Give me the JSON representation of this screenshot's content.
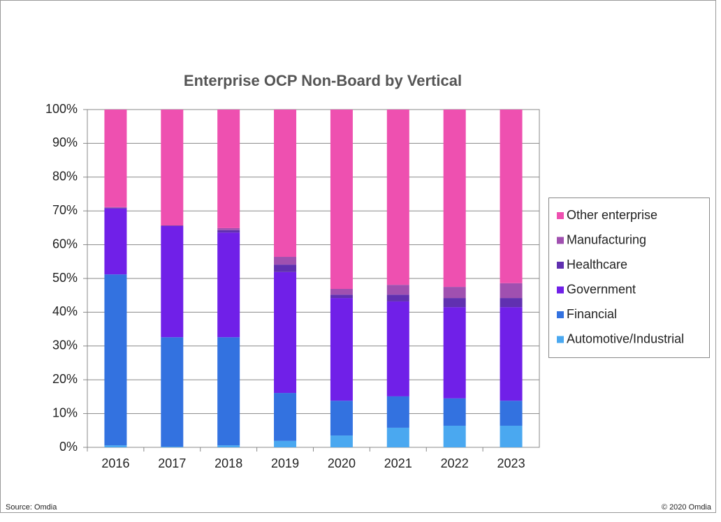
{
  "chart_data": {
    "type": "stacked_bar",
    "title": "Enterprise OCP Non-Board by Vertical",
    "categories": [
      "2016",
      "2017",
      "2018",
      "2019",
      "2020",
      "2021",
      "2022",
      "2023"
    ],
    "series": [
      {
        "name": "Automotive/Industrial",
        "color": "#4aa8f0",
        "values": [
          0.6,
          0.2,
          0.6,
          1.9,
          3.5,
          5.8,
          6.4,
          6.4
        ]
      },
      {
        "name": "Financial",
        "color": "#3372e0",
        "values": [
          50.6,
          32.4,
          32.0,
          14.2,
          10.3,
          9.3,
          8.1,
          7.4
        ]
      },
      {
        "name": "Government",
        "color": "#7020e8",
        "values": [
          19.5,
          32.9,
          31.0,
          35.8,
          30.4,
          28.1,
          27.0,
          27.7
        ]
      },
      {
        "name": "Healthcare",
        "color": "#6030b0",
        "values": [
          0.2,
          0.1,
          0.7,
          2.2,
          1.0,
          2.0,
          2.7,
          2.7
        ]
      },
      {
        "name": "Manufacturing",
        "color": "#a050b0",
        "values": [
          0.2,
          0.1,
          0.6,
          2.3,
          1.7,
          2.9,
          3.3,
          4.4
        ]
      },
      {
        "name": "Other enterprise",
        "color": "#ee50b0",
        "values": [
          28.9,
          34.3,
          35.1,
          43.6,
          53.1,
          51.9,
          52.5,
          51.4
        ]
      }
    ],
    "ylim": [
      0,
      100
    ],
    "yticks": [
      {
        "value": 0,
        "label": "0%"
      },
      {
        "value": 10,
        "label": "10%"
      },
      {
        "value": 20,
        "label": "20%"
      },
      {
        "value": 30,
        "label": "30%"
      },
      {
        "value": 40,
        "label": "40%"
      },
      {
        "value": 50,
        "label": "50%"
      },
      {
        "value": 60,
        "label": "60%"
      },
      {
        "value": 70,
        "label": "70%"
      },
      {
        "value": 80,
        "label": "80%"
      },
      {
        "value": 90,
        "label": "90%"
      },
      {
        "value": 100,
        "label": "100%"
      }
    ],
    "grid": true,
    "legend": "right",
    "source": "Source: Omdia",
    "copyright": "© 2020 Omdia"
  }
}
